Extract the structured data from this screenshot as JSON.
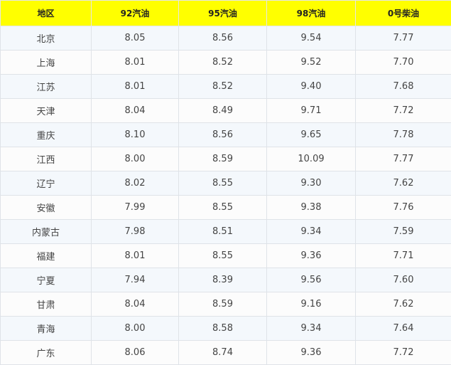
{
  "table": {
    "headers": [
      "地区",
      "92汽油",
      "95汽油",
      "98汽油",
      "0号柴油"
    ],
    "header_color": "#ffff00",
    "rows": [
      [
        "北京",
        "8.05",
        "8.56",
        "9.54",
        "7.77"
      ],
      [
        "上海",
        "8.01",
        "8.52",
        "9.52",
        "7.70"
      ],
      [
        "江苏",
        "8.01",
        "8.52",
        "9.40",
        "7.68"
      ],
      [
        "天津",
        "8.04",
        "8.49",
        "9.71",
        "7.72"
      ],
      [
        "重庆",
        "8.10",
        "8.56",
        "9.65",
        "7.78"
      ],
      [
        "江西",
        "8.00",
        "8.59",
        "10.09",
        "7.77"
      ],
      [
        "辽宁",
        "8.02",
        "8.55",
        "9.30",
        "7.62"
      ],
      [
        "安徽",
        "7.99",
        "8.55",
        "9.38",
        "7.76"
      ],
      [
        "内蒙古",
        "7.98",
        "8.51",
        "9.34",
        "7.59"
      ],
      [
        "福建",
        "8.01",
        "8.55",
        "9.36",
        "7.71"
      ],
      [
        "宁夏",
        "7.94",
        "8.39",
        "9.56",
        "7.60"
      ],
      [
        "甘肃",
        "8.04",
        "8.59",
        "9.16",
        "7.62"
      ],
      [
        "青海",
        "8.00",
        "8.58",
        "9.34",
        "7.64"
      ],
      [
        "广东",
        "8.06",
        "8.74",
        "9.36",
        "7.72"
      ]
    ]
  }
}
